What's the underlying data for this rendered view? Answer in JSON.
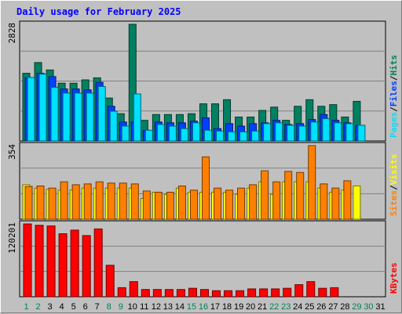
{
  "title": "Daily usage for February 2025",
  "chart_data": [
    {
      "type": "bar",
      "panel": "hits-files-pages",
      "categories": [
        "1",
        "2",
        "3",
        "4",
        "5",
        "6",
        "7",
        "8",
        "9",
        "10",
        "11",
        "12",
        "13",
        "14",
        "15",
        "16",
        "17",
        "18",
        "19",
        "20",
        "21",
        "22",
        "23",
        "24",
        "25",
        "26",
        "27",
        "28",
        "29",
        "30",
        "31"
      ],
      "ymax_label": "2828",
      "ylim": [
        0,
        2828
      ],
      "axis_label": [
        "Pages",
        "/",
        "Files",
        "/",
        "Hits"
      ],
      "axis_label_colors": [
        "#00e0ff",
        "#000000",
        "#0040ff",
        "#000000",
        "#00805c"
      ],
      "grid": true,
      "series": [
        {
          "name": "Hits",
          "color": "#008060",
          "values": [
            1640,
            1900,
            1720,
            1400,
            1400,
            1480,
            1530,
            1040,
            660,
            2828,
            500,
            640,
            640,
            640,
            660,
            900,
            900,
            1000,
            580,
            580,
            740,
            820,
            500,
            840,
            1000,
            840,
            880,
            580,
            960,
            0,
            0
          ]
        },
        {
          "name": "Files",
          "color": "#0040ff",
          "values": [
            1530,
            1640,
            1560,
            1260,
            1260,
            1240,
            1420,
            840,
            460,
            460,
            260,
            460,
            440,
            440,
            480,
            560,
            300,
            420,
            360,
            420,
            440,
            500,
            400,
            420,
            520,
            640,
            500,
            440,
            380,
            0,
            0
          ]
        },
        {
          "name": "Pages",
          "color": "#00e0ff",
          "values": [
            1540,
            1620,
            1300,
            1160,
            1160,
            1160,
            1320,
            720,
            360,
            1140,
            260,
            400,
            360,
            300,
            440,
            260,
            240,
            220,
            220,
            240,
            420,
            440,
            380,
            360,
            460,
            540,
            440,
            420,
            380,
            0,
            0
          ]
        }
      ]
    },
    {
      "type": "bar",
      "panel": "visits-sites",
      "categories": [
        "1",
        "2",
        "3",
        "4",
        "5",
        "6",
        "7",
        "8",
        "9",
        "10",
        "11",
        "12",
        "13",
        "14",
        "15",
        "16",
        "17",
        "18",
        "19",
        "20",
        "21",
        "22",
        "23",
        "24",
        "25",
        "26",
        "27",
        "28",
        "29",
        "30",
        "31"
      ],
      "ymax_label": "354",
      "ylim": [
        0,
        354
      ],
      "axis_label": [
        "Sites",
        "/",
        "Visits"
      ],
      "axis_label_colors": [
        "#ff8000",
        "#000000",
        "#ffff00"
      ],
      "grid": true,
      "series": [
        {
          "name": "Visits",
          "color": "#ffff00",
          "values": [
            166,
            150,
            144,
            140,
            140,
            150,
            150,
            150,
            150,
            150,
            100,
            130,
            120,
            150,
            130,
            130,
            130,
            130,
            120,
            150,
            180,
            120,
            180,
            180,
            180,
            150,
            130,
            140,
            160,
            0,
            0
          ]
        },
        {
          "name": "Sites",
          "color": "#ff8000",
          "values": [
            158,
            160,
            150,
            180,
            166,
            170,
            180,
            174,
            174,
            170,
            136,
            130,
            130,
            160,
            140,
            300,
            150,
            140,
            150,
            166,
            233,
            180,
            230,
            225,
            354,
            170,
            150,
            185,
            0,
            0,
            0
          ]
        }
      ]
    },
    {
      "type": "bar",
      "panel": "kbytes",
      "categories": [
        "1",
        "2",
        "3",
        "4",
        "5",
        "6",
        "7",
        "8",
        "9",
        "10",
        "11",
        "12",
        "13",
        "14",
        "15",
        "16",
        "17",
        "18",
        "19",
        "20",
        "21",
        "22",
        "23",
        "24",
        "25",
        "26",
        "27",
        "28",
        "29",
        "30",
        "31"
      ],
      "ymax_label": "120201",
      "ylim": [
        0,
        120201
      ],
      "axis_label": [
        "KBytes"
      ],
      "axis_label_colors": [
        "#ff0000"
      ],
      "grid": true,
      "series": [
        {
          "name": "KBytes",
          "color": "#ff0000",
          "values": [
            120201,
            118000,
            117000,
            104000,
            110000,
            101000,
            112000,
            52000,
            15000,
            25000,
            12000,
            12000,
            12000,
            12000,
            14000,
            12000,
            10000,
            10000,
            10000,
            13000,
            13000,
            13000,
            14000,
            20000,
            25000,
            14000,
            15000,
            0,
            0,
            0,
            0
          ]
        }
      ]
    }
  ],
  "x_axis": {
    "labels": [
      "1",
      "2",
      "3",
      "4",
      "5",
      "6",
      "7",
      "8",
      "9",
      "10",
      "11",
      "12",
      "13",
      "14",
      "15",
      "16",
      "17",
      "18",
      "19",
      "20",
      "21",
      "22",
      "23",
      "24",
      "25",
      "26",
      "27",
      "28",
      "29",
      "30",
      "31"
    ],
    "weekend_days": [
      "1",
      "2",
      "8",
      "9",
      "15",
      "16",
      "22",
      "23",
      "29",
      "30"
    ],
    "weekend_color": "#00805c",
    "weekday_color": "#000000"
  }
}
